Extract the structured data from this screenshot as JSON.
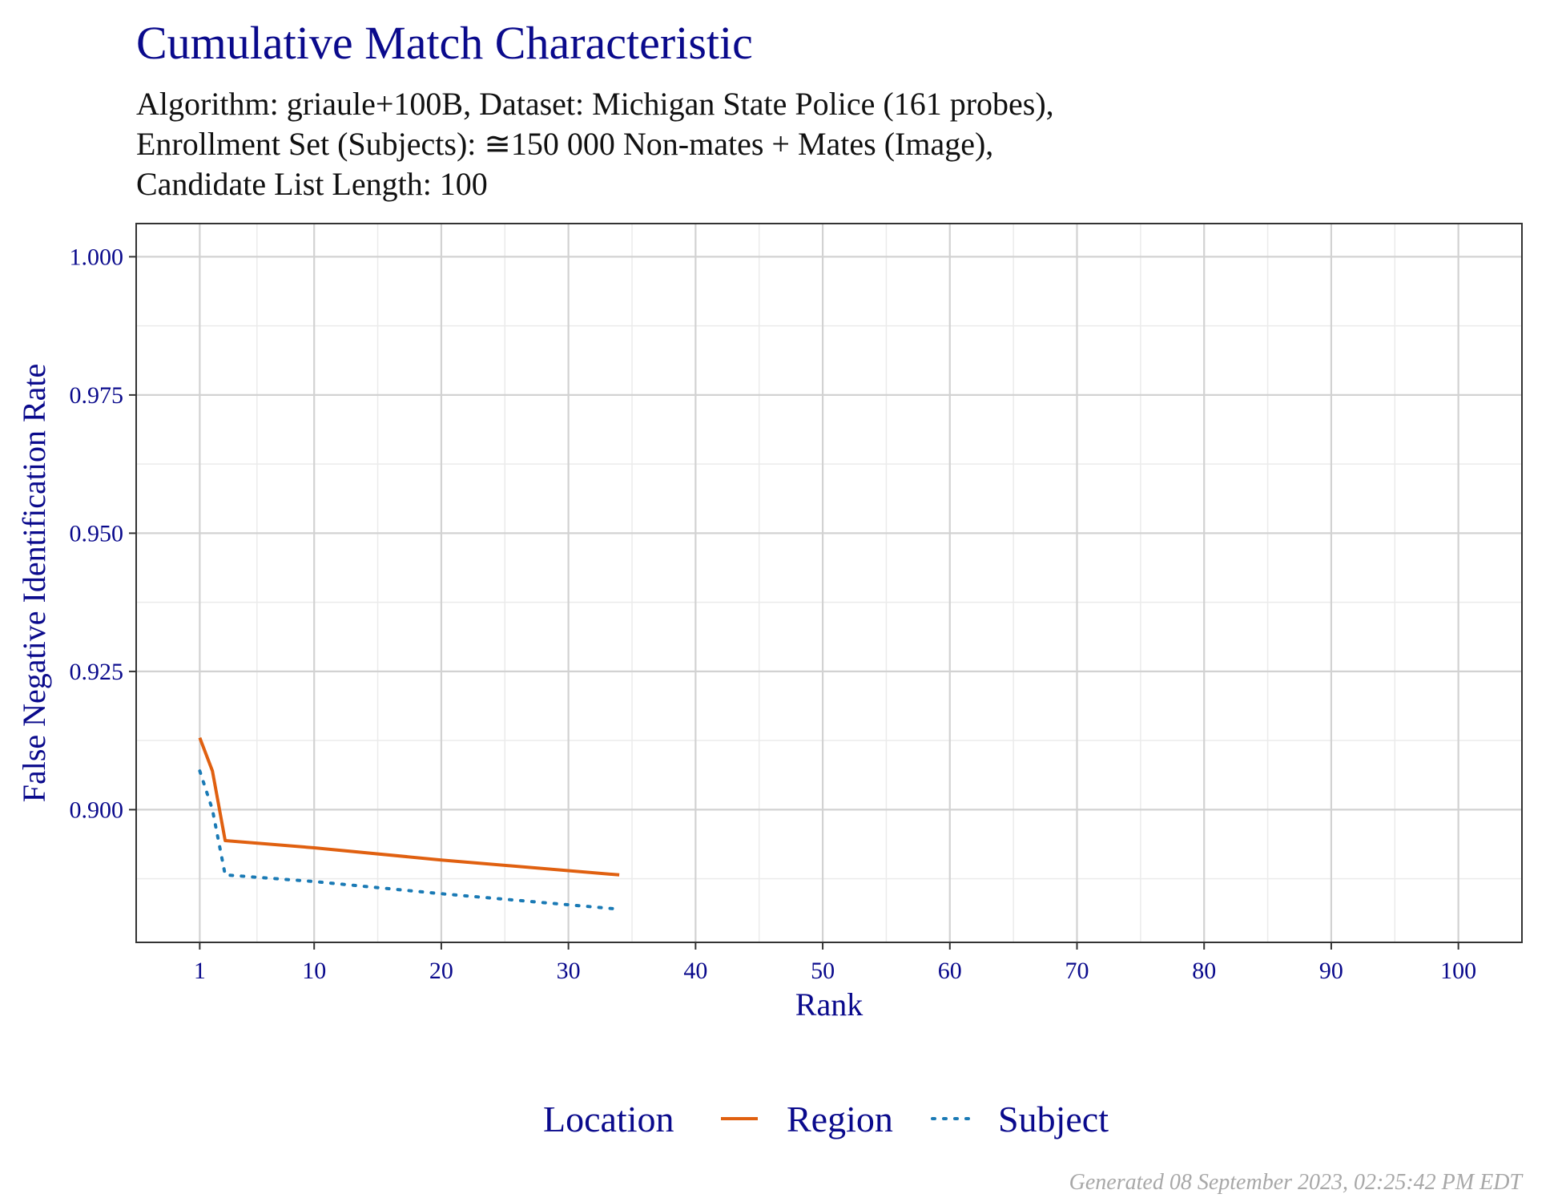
{
  "title": "Cumulative Match Characteristic",
  "subtitle_lines": [
    "Algorithm: griaule+100B, Dataset: Michigan State Police (161 probes),",
    "Enrollment Set (Subjects): ≅150 000 Non-mates + Mates (Image),",
    "Candidate List Length: 100"
  ],
  "footer": "Generated 08 September 2023, 02:25:42 PM EDT",
  "chart_data": {
    "type": "line",
    "xlabel": "Rank",
    "ylabel": "False Negative Identification Rate",
    "xlim": [
      -4,
      105
    ],
    "ylim": [
      0.876,
      1.006
    ],
    "xticks": [
      1,
      10,
      20,
      30,
      40,
      50,
      60,
      70,
      80,
      90,
      100
    ],
    "yticks": [
      0.9,
      0.925,
      0.95,
      0.975,
      1.0
    ],
    "ytick_labels": [
      "0.900",
      "0.925",
      "0.950",
      "0.975",
      "1.000"
    ],
    "grid": true,
    "legend": {
      "title": "Location",
      "placement": "bottom"
    },
    "series": [
      {
        "name": "Region",
        "color": "#e06010",
        "dash": "solid",
        "x": [
          1,
          2,
          3,
          10,
          20,
          34
        ],
        "y": [
          0.913,
          0.907,
          0.8944,
          0.8931,
          0.8909,
          0.8882
        ]
      },
      {
        "name": "Subject",
        "color": "#1a7ab5",
        "dash": "dotted",
        "x": [
          1,
          2,
          3,
          10,
          20,
          34
        ],
        "y": [
          0.907,
          0.9,
          0.8882,
          0.887,
          0.8848,
          0.882
        ]
      }
    ]
  }
}
